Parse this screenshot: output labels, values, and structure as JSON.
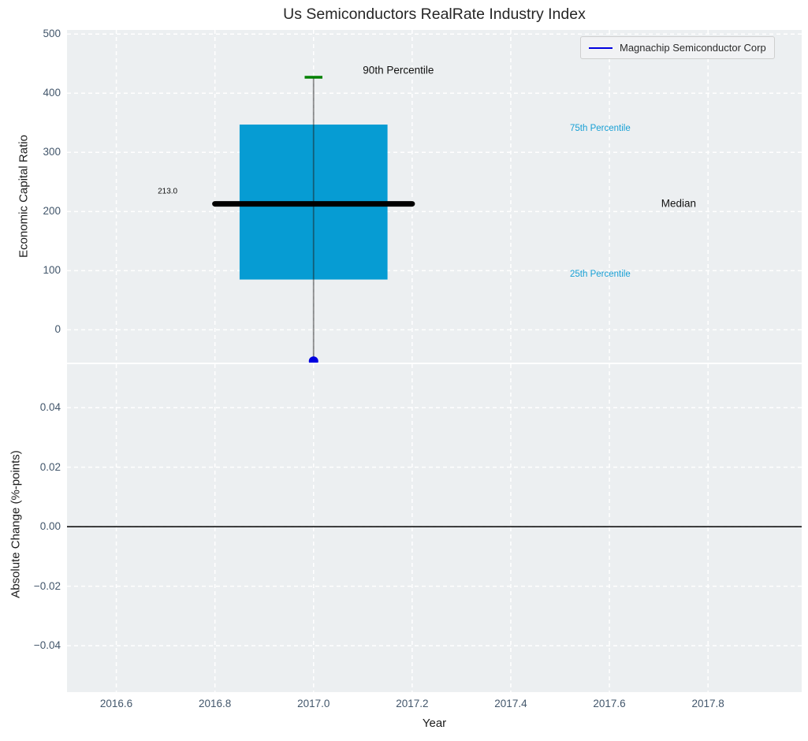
{
  "chart_data": {
    "type": "boxplot",
    "title": "Us Semiconductors RealRate Industry Index",
    "xlabel": "Year",
    "x_range": [
      2016.5,
      2017.99
    ],
    "x_ticks": [
      2016.6,
      2016.8,
      2017.0,
      2017.2,
      2017.4,
      2017.6,
      2017.8
    ],
    "x_tick_labels": [
      "2016.6",
      "2016.8",
      "2017.0",
      "2017.2",
      "2017.4",
      "2017.6",
      "2017.8"
    ],
    "grid": {
      "style": "dashed",
      "color": "#ffffff"
    },
    "panels": {
      "top": {
        "ylabel": "Economic Capital Ratio",
        "y_range": [
          -55.5,
          507
        ],
        "y_ticks": [
          0,
          100,
          200,
          300,
          400,
          500
        ],
        "y_tick_labels": [
          "0",
          "100",
          "200",
          "300",
          "400",
          "500"
        ],
        "box": {
          "x": 2017.0,
          "half_width": 0.15,
          "p90": 427,
          "p75": 347,
          "median": 213.0,
          "p25": 85,
          "whisker_low": -53,
          "median_line_half_width": 0.2,
          "cap_half_width": 0.018,
          "fill_color": "#069cd3",
          "median_color": "#000000",
          "cap_color": "#008000",
          "whisker_color": "rgba(30,30,30,0.5)"
        },
        "company_point": {
          "label": "Magnachip Semiconductor Corp",
          "x": 2017.0,
          "y": -53,
          "color": "#0000e0",
          "radius": 6
        },
        "annotations": [
          {
            "text": "90th Percentile",
            "x": 2017.1,
            "y": 439,
            "color": "#111111",
            "size": 13.5,
            "name": "annotation-90th-percentile"
          },
          {
            "text": "75th Percentile",
            "x": 2017.52,
            "y": 340,
            "color": "#18a0d5",
            "size": 11.5,
            "name": "annotation-75th-percentile"
          },
          {
            "text": "Median",
            "x": 2017.705,
            "y": 214,
            "color": "#111111",
            "size": 13.5,
            "name": "annotation-median"
          },
          {
            "text": "25th Percentile",
            "x": 2017.52,
            "y": 94,
            "color": "#18a0d5",
            "size": 11.5,
            "name": "annotation-25th-percentile"
          },
          {
            "text": "213.0",
            "x": 2016.684,
            "y": 234,
            "color": "#111111",
            "size": 10,
            "name": "annotation-median-value"
          }
        ]
      },
      "bottom": {
        "ylabel": "Absolute Change (%-points)",
        "y_range": [
          -0.0556,
          0.0546
        ],
        "y_ticks": [
          0.04,
          0.02,
          0.0,
          -0.02,
          -0.04
        ],
        "y_tick_labels": [
          "0.04",
          "0.02",
          "0.00",
          "−0.02",
          "−0.04"
        ],
        "zero_line": {
          "y": 0.0,
          "color": "#000000",
          "width": 1.6
        }
      }
    },
    "legend": {
      "position": "upper right",
      "entries": [
        {
          "label": "Magnachip Semiconductor Corp",
          "color": "#0000e0",
          "marker": "line"
        }
      ]
    },
    "colors": {
      "figure_bg": "#ffffff",
      "axes_bg": "#eceff1",
      "grid": "#ffffff",
      "tick_label": "#42566b",
      "axis_label": "#1a1a1a",
      "title": "#262626"
    }
  }
}
